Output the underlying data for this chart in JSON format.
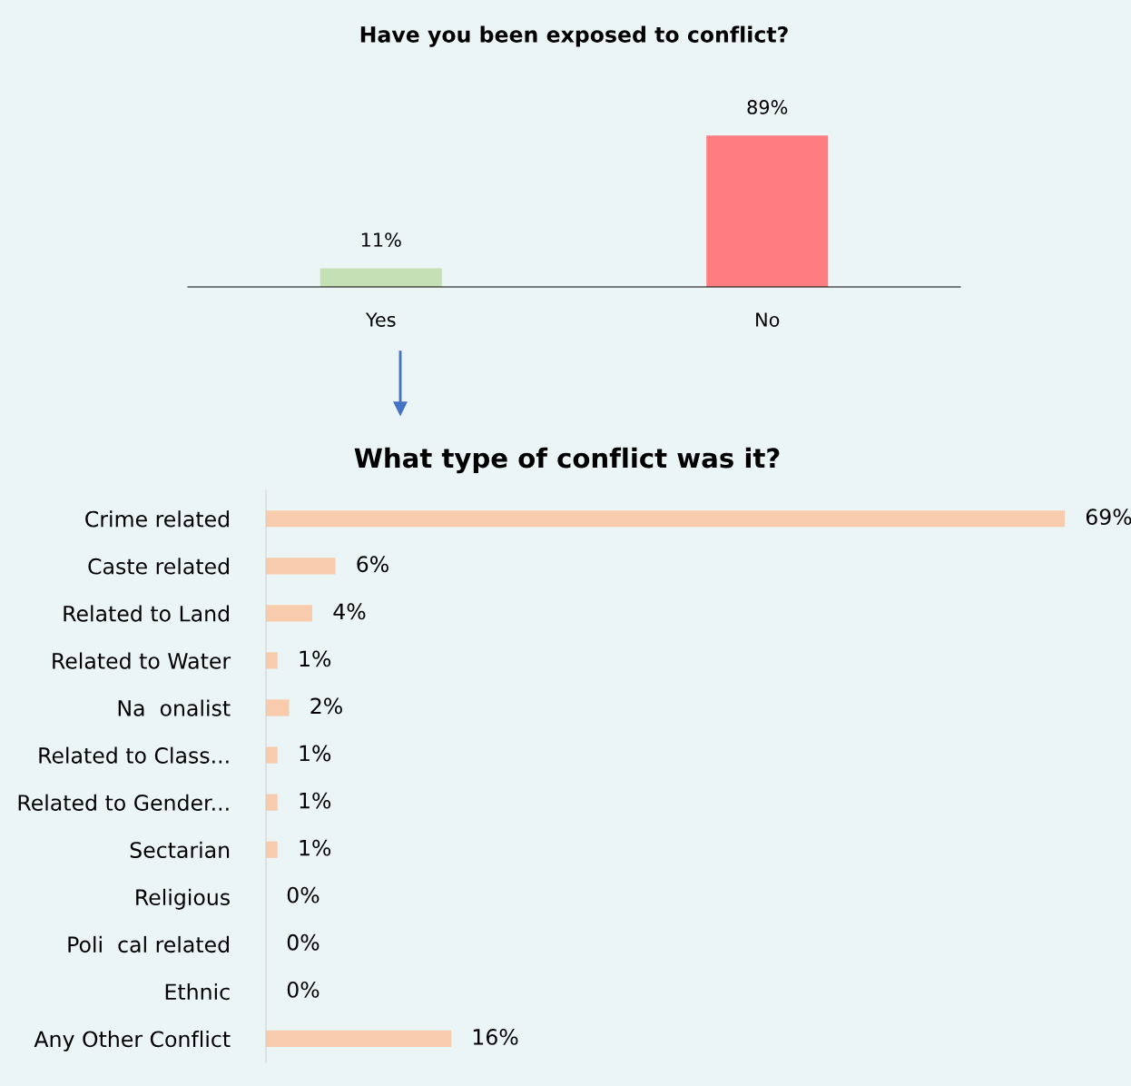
{
  "chart_data": [
    {
      "type": "bar",
      "title": "Have you been exposed to conflict?",
      "categories": [
        "Yes",
        "No"
      ],
      "values": [
        11,
        89
      ],
      "colors": [
        "#c5e0b4",
        "#ff7c80"
      ],
      "data_labels": true,
      "value_labels": [
        "11%",
        "89%"
      ]
    },
    {
      "type": "bar",
      "orientation": "horizontal",
      "title": "What type of conflict was it?",
      "categories": [
        "Crime related",
        "Caste related",
        "Related to Land",
        "Related to Water",
        "Na  onalist",
        "Related to Class...",
        "Related to Gender...",
        "Sectarian",
        "Religious",
        "Poli  cal related",
        "Ethnic",
        "Any Other Conflict"
      ],
      "values": [
        69,
        6,
        4,
        1,
        2,
        1,
        1,
        1,
        0,
        0,
        0,
        16
      ],
      "color": "#f8cbad",
      "data_labels": true,
      "value_labels": [
        "69%",
        "6%",
        "4%",
        "1%",
        "2%",
        "1%",
        "1%",
        "1%",
        "0%",
        "0%",
        "0%",
        "16%"
      ]
    }
  ]
}
